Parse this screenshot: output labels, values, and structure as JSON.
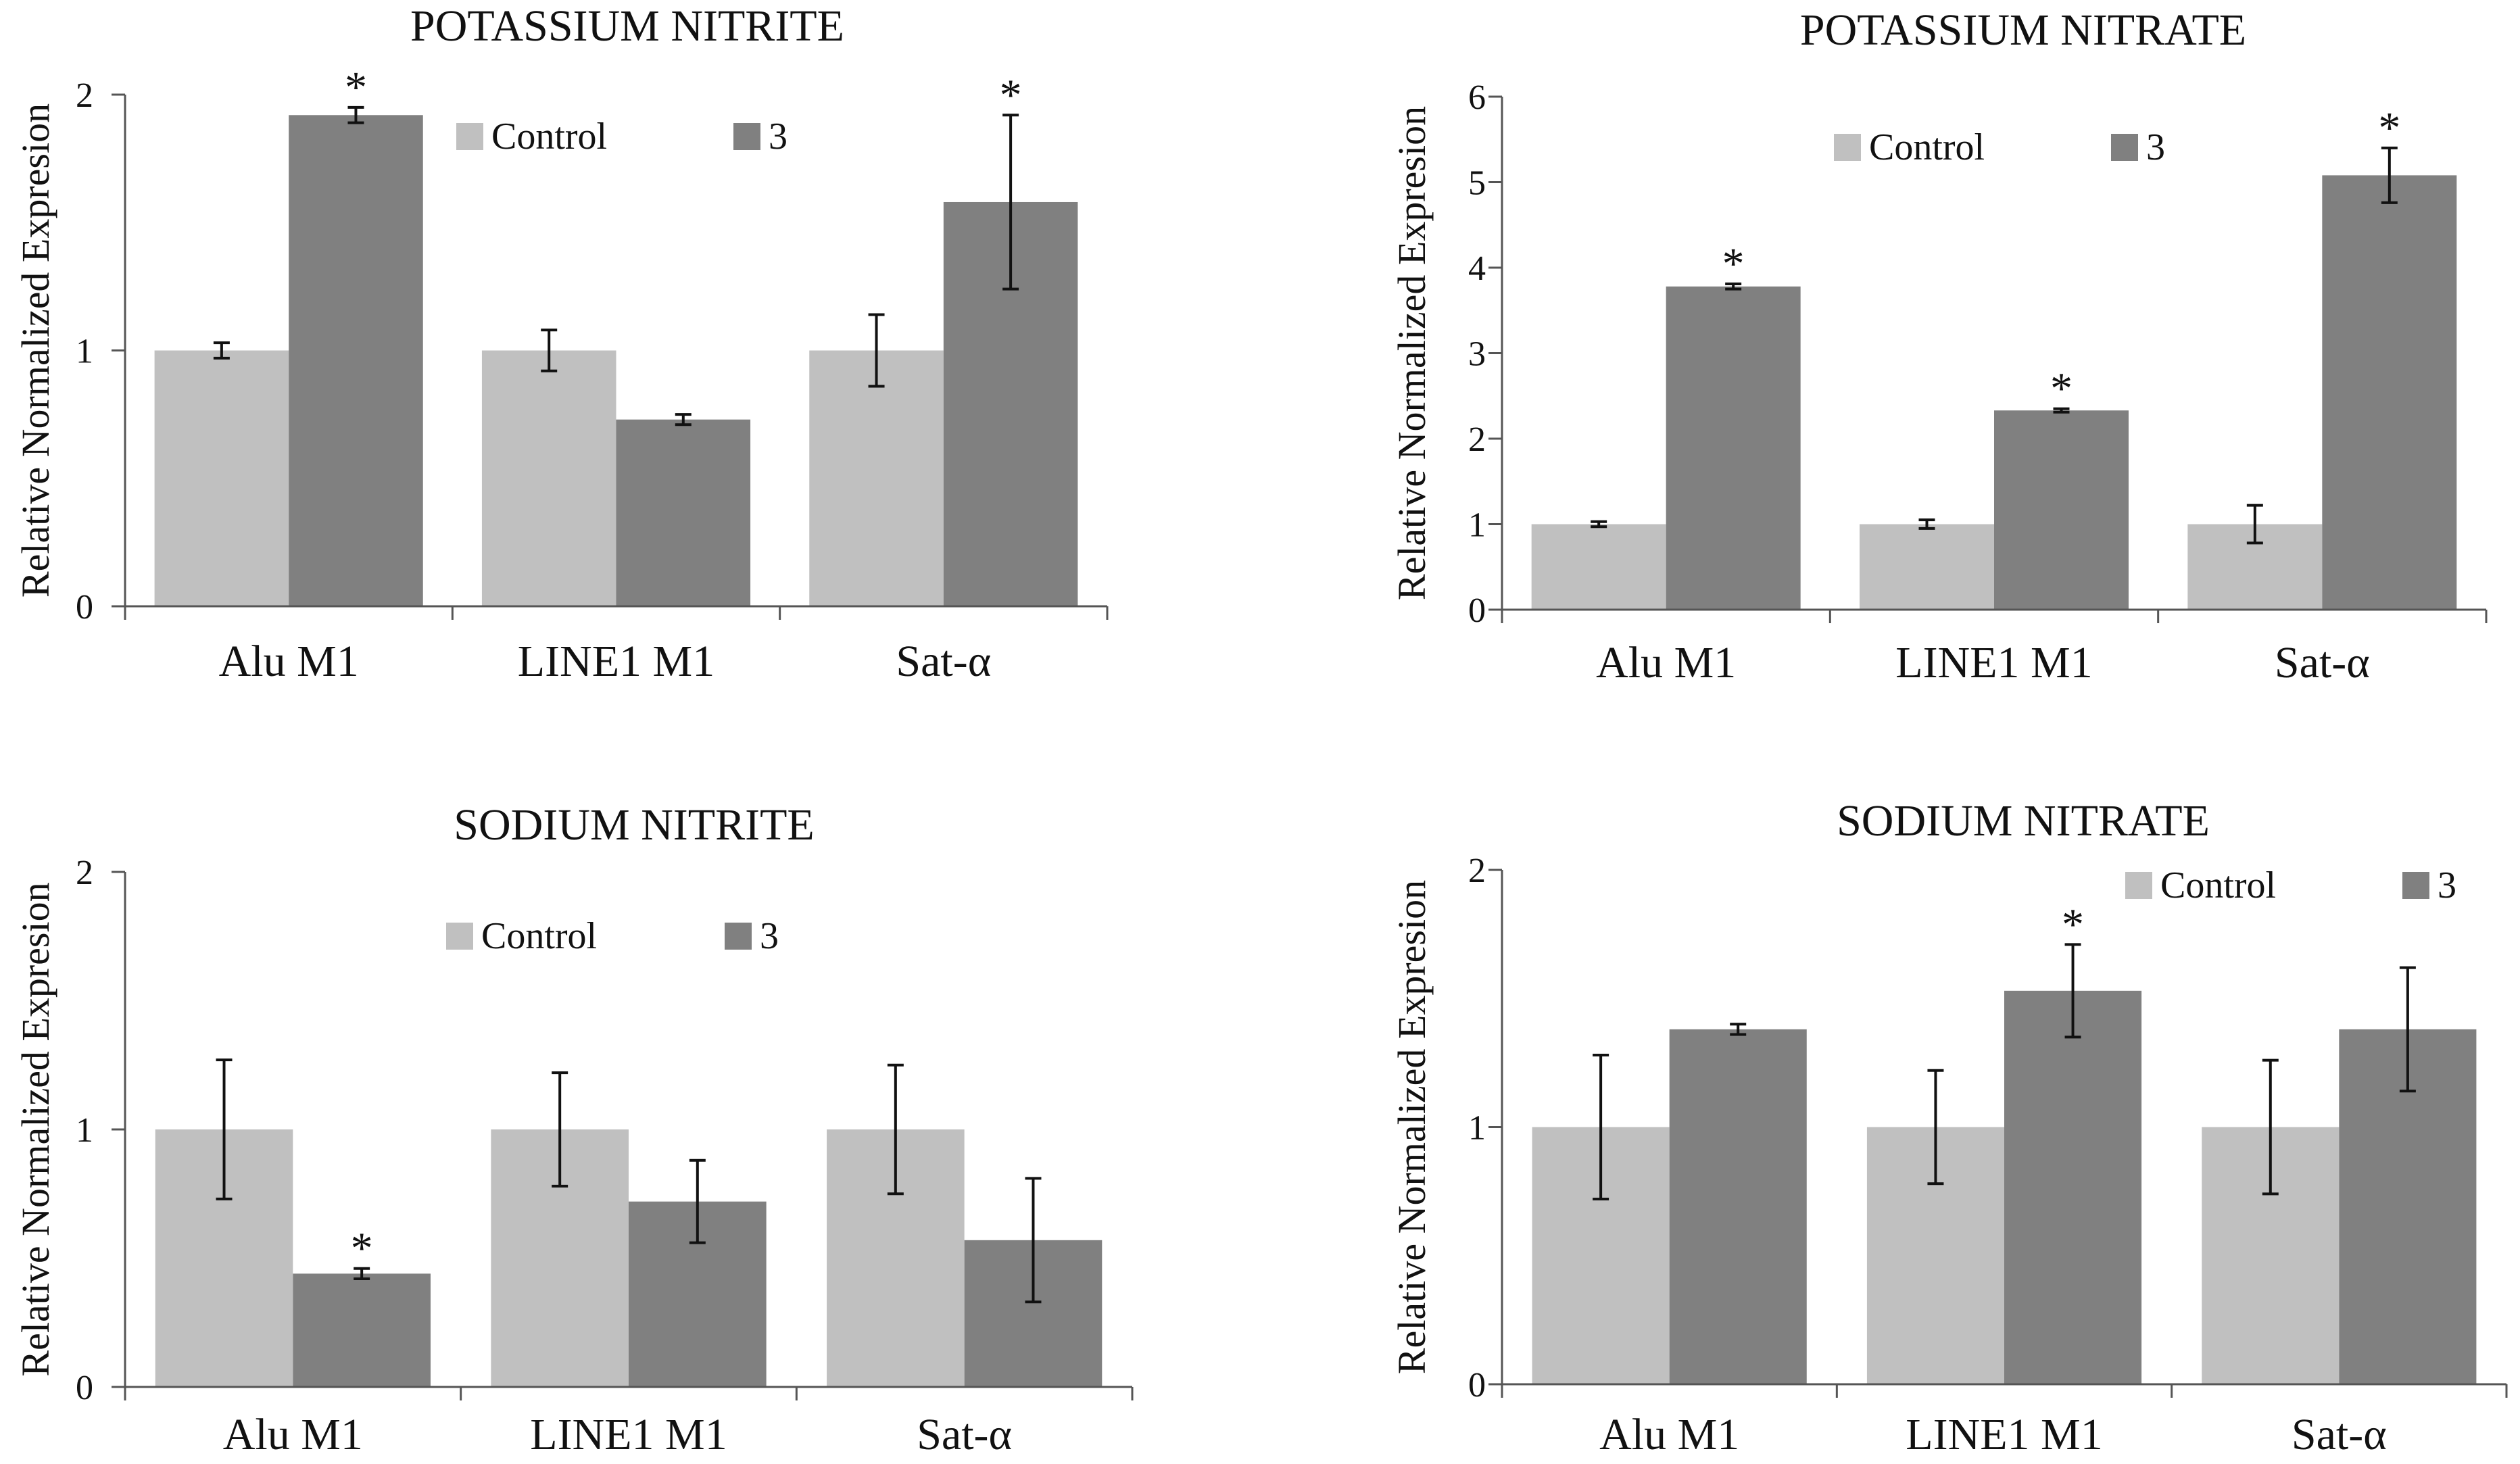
{
  "chart_data": [
    {
      "type": "bar",
      "title": "POTASSIUM NITRITE",
      "ylabel": "Relative Normalized Expresion",
      "xlabel": "",
      "ylim": [
        0,
        2
      ],
      "yticks": [
        0,
        1,
        2
      ],
      "categories": [
        "Alu M1",
        "LINE1 M1",
        "Sat-α"
      ],
      "legend_position": "top-center",
      "series": [
        {
          "name": "Control",
          "color": "#c0c0c0",
          "values": [
            1.0,
            1.0,
            1.0
          ],
          "errors": [
            0.03,
            0.08,
            0.14
          ],
          "significant": [
            false,
            false,
            false
          ]
        },
        {
          "name": "3",
          "color": "#808080",
          "values": [
            1.92,
            0.73,
            1.58
          ],
          "errors": [
            0.03,
            0.02,
            0.34
          ],
          "significant": [
            true,
            false,
            true
          ]
        }
      ]
    },
    {
      "type": "bar",
      "title": "POTASSIUM NITRATE",
      "ylabel": "Relative Normalized Expresion",
      "xlabel": "",
      "ylim": [
        0,
        6
      ],
      "yticks": [
        0,
        1,
        2,
        3,
        4,
        5,
        6
      ],
      "categories": [
        "Alu M1",
        "LINE1 M1",
        "Sat-α"
      ],
      "legend_position": "top-center",
      "series": [
        {
          "name": "Control",
          "color": "#c0c0c0",
          "values": [
            1.0,
            1.0,
            1.0
          ],
          "errors": [
            0.03,
            0.05,
            0.22
          ],
          "significant": [
            false,
            false,
            false
          ]
        },
        {
          "name": "3",
          "color": "#808080",
          "values": [
            3.78,
            2.33,
            5.08
          ],
          "errors": [
            0.03,
            0.02,
            0.32
          ],
          "significant": [
            true,
            true,
            true
          ]
        }
      ]
    },
    {
      "type": "bar",
      "title": "SODIUM NITRITE",
      "ylabel": "Relative Normalized Expresion",
      "xlabel": "",
      "ylim": [
        0,
        2
      ],
      "yticks": [
        0,
        1,
        2
      ],
      "categories": [
        "Alu M1",
        "LINE1 M1",
        "Sat-α"
      ],
      "legend_position": "top-center",
      "series": [
        {
          "name": "Control",
          "color": "#c0c0c0",
          "values": [
            1.0,
            1.0,
            1.0
          ],
          "errors": [
            0.27,
            0.22,
            0.25
          ],
          "significant": [
            false,
            false,
            false
          ]
        },
        {
          "name": "3",
          "color": "#808080",
          "values": [
            0.44,
            0.72,
            0.57
          ],
          "errors": [
            0.02,
            0.16,
            0.24
          ],
          "significant": [
            true,
            false,
            false
          ]
        }
      ]
    },
    {
      "type": "bar",
      "title": "SODIUM NITRATE",
      "ylabel": "Relative Normalized Expresion",
      "xlabel": "",
      "ylim": [
        0,
        2
      ],
      "yticks": [
        0,
        1,
        2
      ],
      "categories": [
        "Alu M1",
        "LINE1 M1",
        "Sat-α"
      ],
      "legend_position": "top-right",
      "series": [
        {
          "name": "Control",
          "color": "#c0c0c0",
          "values": [
            1.0,
            1.0,
            1.0
          ],
          "errors": [
            0.28,
            0.22,
            0.26
          ],
          "significant": [
            false,
            false,
            false
          ]
        },
        {
          "name": "3",
          "color": "#808080",
          "values": [
            1.38,
            1.53,
            1.38
          ],
          "errors": [
            0.02,
            0.18,
            0.24
          ],
          "significant": [
            false,
            true,
            false
          ]
        }
      ]
    }
  ],
  "significance_marker": "*"
}
